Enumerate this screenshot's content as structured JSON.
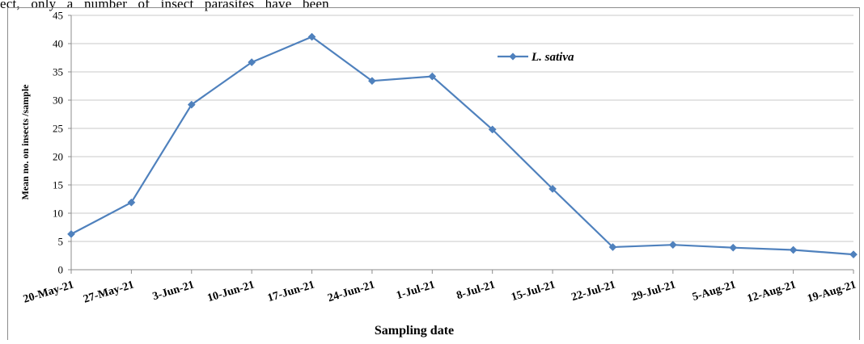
{
  "page": {
    "top_text": "ect, only a number of insect parasites have been"
  },
  "chart_data": {
    "type": "line",
    "categories": [
      "20-May-21",
      "27-May-21",
      "3-Jun-21",
      "10-Jun-21",
      "17-Jun-21",
      "24-Jun-21",
      "1-Jul-21",
      "8-Jul-21",
      "15-Jul-21",
      "22-Jul-21",
      "29-Jul-21",
      "5-Aug-21",
      "12-Aug-21",
      "19-Aug-21"
    ],
    "series": [
      {
        "name": "L. sativa",
        "values": [
          6.3,
          11.9,
          29.2,
          36.7,
          41.2,
          33.4,
          34.2,
          24.8,
          14.3,
          4.0,
          4.4,
          3.9,
          3.5,
          2.7
        ],
        "color": "#4f81bd"
      }
    ],
    "title": "",
    "xlabel": "Sampling date",
    "ylabel": "Mean no. on insects /sample",
    "ylim": [
      0,
      45
    ],
    "yticks": [
      0,
      5,
      10,
      15,
      20,
      25,
      30,
      35,
      40,
      45
    ],
    "grid": true,
    "legend_position": "top-right",
    "marker": "diamond"
  }
}
